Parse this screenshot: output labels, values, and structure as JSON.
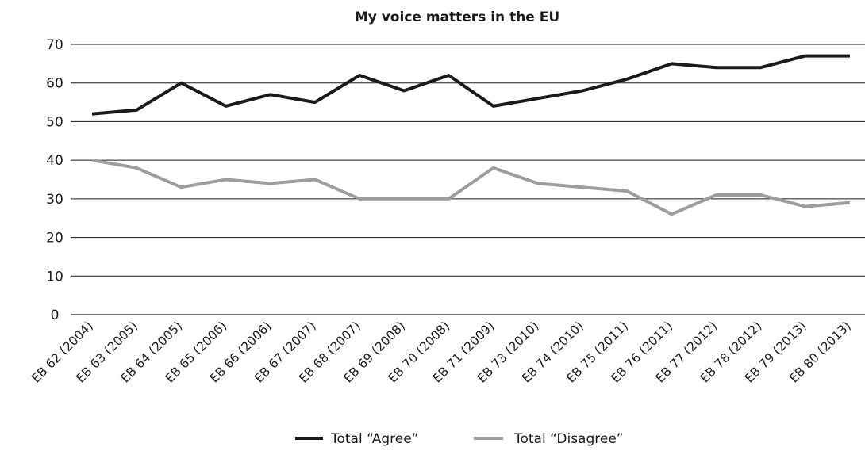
{
  "chart_data": {
    "type": "line",
    "title": "My voice matters in the EU",
    "xlabel": "",
    "ylabel": "",
    "ylim": [
      0,
      70
    ],
    "yticks": [
      0,
      10,
      20,
      30,
      40,
      50,
      60,
      70
    ],
    "grid": "horizontal",
    "legend_position": "bottom",
    "categories": [
      "EB 62 (2004)",
      "EB 63 (2005)",
      "EB 64 (2005)",
      "EB 65 (2006)",
      "EB 66 (2006)",
      "EB 67 (2007)",
      "EB 68 (2007)",
      "EB 69 (2008)",
      "EB 70 (2008)",
      "EB 71 (2009)",
      "EB 73 (2010)",
      "EB 74 (2010)",
      "EB 75 (2011)",
      "EB 76 (2011)",
      "EB 77 (2012)",
      "EB 78 (2012)",
      "EB 79 (2013)",
      "EB 80 (2013)"
    ],
    "series": [
      {
        "name": "Total “Agree”",
        "color": "#1a1a1a",
        "values": [
          52,
          53,
          60,
          54,
          57,
          55,
          62,
          58,
          62,
          54,
          56,
          58,
          61,
          65,
          64,
          64,
          67,
          67
        ]
      },
      {
        "name": "Total “Disagree”",
        "color": "#9d9d9d",
        "values": [
          40,
          38,
          33,
          35,
          34,
          35,
          30,
          30,
          30,
          38,
          34,
          33,
          32,
          26,
          31,
          31,
          28,
          29
        ]
      }
    ]
  }
}
